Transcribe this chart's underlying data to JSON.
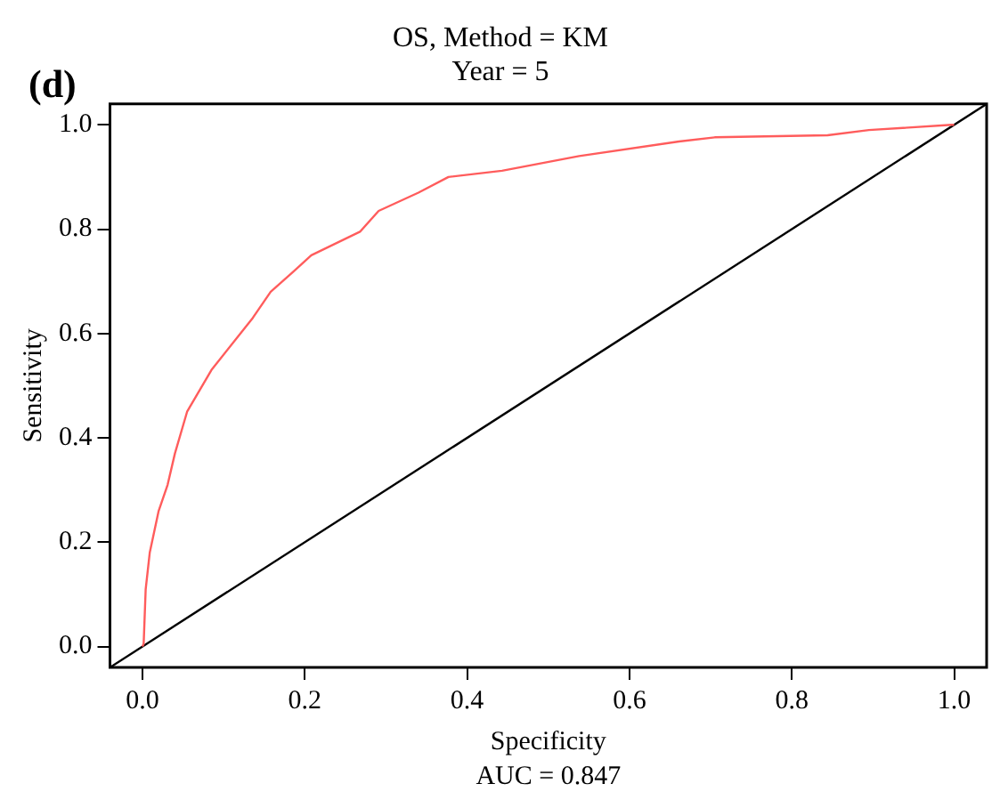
{
  "chart_data": {
    "type": "line",
    "title": [
      "OS, Method = KM",
      "Year = 5"
    ],
    "xlabel": "Specificity",
    "ylabel": "Sensitivity",
    "annotations": [
      "(d)",
      "AUC = 0.847"
    ],
    "series": [
      {
        "color": "#ff5c5c",
        "x": [
          0,
          0.0015,
          0.004,
          0.009,
          0.02,
          0.031,
          0.04,
          0.055,
          0.085,
          0.136,
          0.158,
          0.187,
          0.208,
          0.268,
          0.291,
          0.34,
          0.377,
          0.443,
          0.538,
          0.661,
          0.705,
          0.844,
          0.895,
          0.997,
          1
        ],
        "values": [
          0,
          0.005,
          0.11,
          0.18,
          0.26,
          0.31,
          0.37,
          0.45,
          0.53,
          0.63,
          0.68,
          0.72,
          0.75,
          0.795,
          0.835,
          0.87,
          0.9,
          0.912,
          0.94,
          0.968,
          0.976,
          0.98,
          0.99,
          1,
          1
        ]
      },
      {
        "color": "#000000",
        "x": [
          -0.04,
          1.04
        ],
        "values": [
          -0.04,
          1.04
        ]
      }
    ],
    "xlim": [
      -0.04,
      1.04
    ],
    "ylim": [
      -0.04,
      1.04
    ],
    "xticks": [
      {
        "value": 0,
        "label": "0.0"
      },
      0.2,
      0.4,
      0.6,
      0.8,
      {
        "value": 1,
        "label": "1.0"
      }
    ],
    "yticks": [
      {
        "value": 0,
        "label": "0.0"
      },
      0.2,
      0.4,
      0.6,
      0.8,
      {
        "value": 1,
        "label": "1.0"
      }
    ],
    "grid": false,
    "legend": false,
    "marker": "none",
    "line_style": "solid"
  }
}
